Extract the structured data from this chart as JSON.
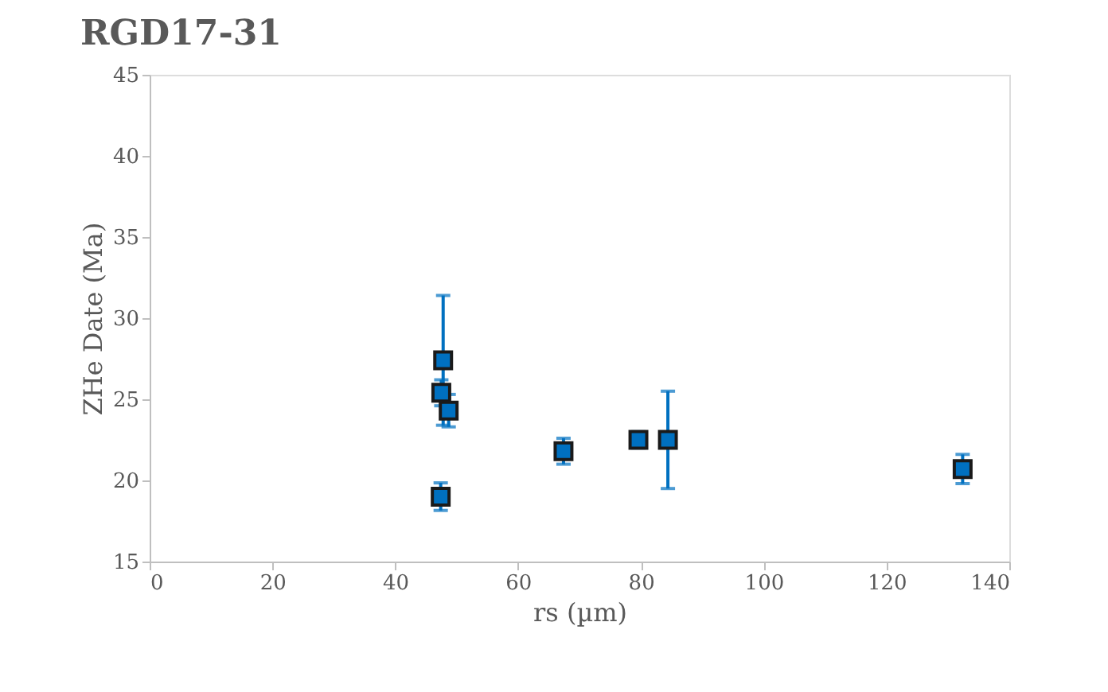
{
  "chart_data": {
    "type": "scatter",
    "title": "RGD17-31",
    "xlabel": "rs (µm)",
    "ylabel": "ZHe Date (Ma)",
    "x": [
      47.8,
      47.5,
      48.7,
      47.4,
      67.4,
      79.6,
      84.4,
      132.4
    ],
    "series": [
      {
        "color": "#0070c0",
        "values": [
          27.4,
          25.4,
          24.3,
          19.0,
          21.8,
          22.5,
          22.5,
          20.7
        ],
        "errors": [
          4.0,
          0.8,
          1.0,
          0.85,
          0.8,
          0.5,
          3.0,
          0.9
        ]
      }
    ],
    "xlim": [
      0,
      140
    ],
    "xticks": [
      0,
      20,
      40,
      60,
      80,
      100,
      120,
      140
    ],
    "ylim": [
      15,
      45
    ],
    "yticks": [
      15,
      20,
      25,
      30,
      35,
      40,
      45
    ],
    "grid": false,
    "marker": "square"
  }
}
